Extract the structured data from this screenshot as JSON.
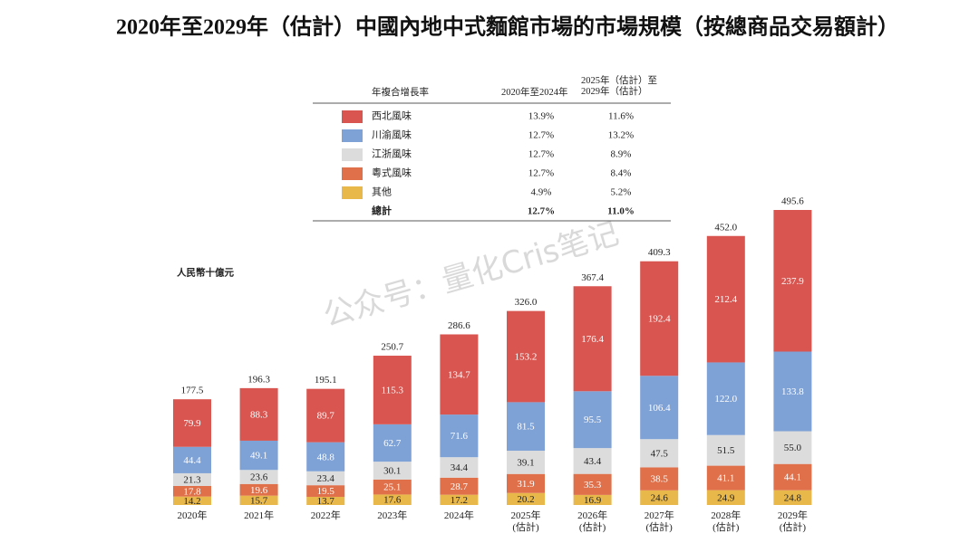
{
  "chart_data": {
    "type": "stacked-bar",
    "title": "2020年至2029年（估計）中國內地中式麵館市場的市場規模（按總商品交易額計）",
    "unit_label": "人民幣十億元",
    "watermark": "公众号：量化Cris笔记",
    "categories": [
      "2020年",
      "2021年",
      "2022年",
      "2023年",
      "2024年",
      "2025年\n(估計)",
      "2026年\n(估計)",
      "2027年\n(估計)",
      "2028年\n(估計)",
      "2029年\n(估計)"
    ],
    "series": [
      {
        "name": "其他",
        "color": "#e8b84a",
        "values": [
          14.2,
          15.7,
          13.7,
          17.6,
          17.2,
          20.2,
          16.9,
          24.6,
          24.9,
          24.8
        ]
      },
      {
        "name": "粵式風味",
        "color": "#e0704a",
        "values": [
          17.8,
          19.6,
          19.5,
          25.1,
          28.7,
          31.9,
          35.3,
          38.5,
          41.1,
          44.1
        ]
      },
      {
        "name": "江浙風味",
        "color": "#dcdcdc",
        "values": [
          21.3,
          23.6,
          23.4,
          30.1,
          34.4,
          39.1,
          43.4,
          47.5,
          51.5,
          55.0
        ],
        "value_labels": [
          "21.3",
          "23.6",
          "23.4",
          "30.1",
          "34.4",
          "39.1",
          "43.4",
          "47.5",
          "51.5",
          "55.0"
        ]
      },
      {
        "name": "川渝風味",
        "color": "#7ea1d6",
        "values": [
          44.4,
          49.1,
          48.8,
          62.7,
          71.6,
          81.5,
          95.5,
          106.4,
          122.0,
          133.8
        ],
        "value_labels": [
          "44.4",
          "49.1",
          "48.8",
          "62.7",
          "71.6",
          "81.5",
          "95.5",
          "106.4",
          "122.0",
          "133.8"
        ]
      },
      {
        "name": "西北風味",
        "color": "#d95550",
        "values": [
          79.9,
          88.3,
          89.7,
          115.3,
          134.7,
          153.2,
          176.4,
          192.4,
          212.4,
          237.9
        ]
      }
    ],
    "totals": [
      177.5,
      196.3,
      195.1,
      250.7,
      286.6,
      326.0,
      367.4,
      409.3,
      452.0,
      495.6
    ],
    "total_labels": [
      "177.5",
      "196.3",
      "195.1",
      "250.7",
      "286.6",
      "326.0",
      "367.4",
      "409.3",
      "452.0",
      "495.6"
    ],
    "cagr_table": {
      "header": [
        "年複合增長率",
        "2020年至2024年",
        "2025年（估計）至\n2029年（估計）"
      ],
      "rows": [
        [
          "4.9%",
          "5.2%"
        ],
        [
          "12.7%",
          "8.4%"
        ],
        [
          "12.7%",
          "8.9%"
        ],
        [
          "12.7%",
          "13.2%"
        ],
        [
          "13.9%",
          "11.6%"
        ]
      ],
      "total": [
        "總計",
        "12.7%",
        "11.0%"
      ]
    }
  }
}
